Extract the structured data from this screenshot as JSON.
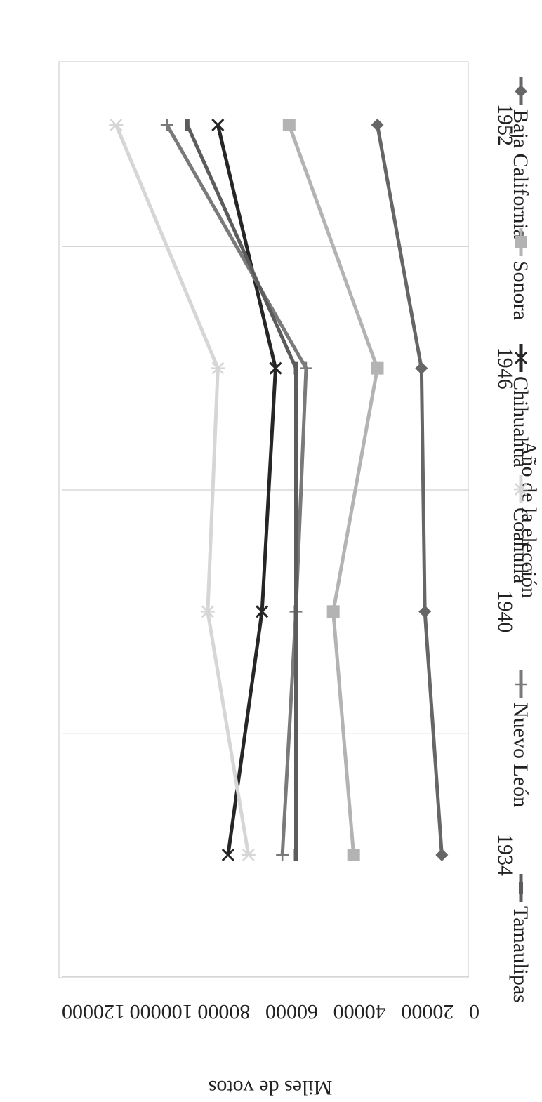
{
  "chart_data": {
    "type": "line",
    "title": "",
    "xlabel": "Año de la elección",
    "ylabel": "Miles de votos",
    "categories": [
      "1934",
      "1940",
      "1946",
      "1952"
    ],
    "ylim": [
      0,
      120000
    ],
    "yticks": [
      "0",
      "20000",
      "40000",
      "60000",
      "80000",
      "100000",
      "120000"
    ],
    "grid": true,
    "legend_position": "top",
    "rotated": "90deg clockwise",
    "series": [
      {
        "name": "Baja California",
        "values": [
          8000,
          13000,
          14000,
          27000
        ],
        "color": "#666666",
        "marker": "diamond"
      },
      {
        "name": "Sonora",
        "values": [
          34000,
          40000,
          27000,
          53000
        ],
        "color": "#b3b3b3",
        "marker": "square"
      },
      {
        "name": "Chihuahua",
        "values": [
          71000,
          61000,
          57000,
          74000
        ],
        "color": "#262626",
        "marker": "x"
      },
      {
        "name": "Coahuila",
        "values": [
          65000,
          77000,
          74000,
          104000
        ],
        "color": "#d6d6d6",
        "marker": "star"
      },
      {
        "name": "Nuevo León",
        "values": [
          55000,
          51000,
          48000,
          89000
        ],
        "color": "#7a7a7a",
        "marker": "plus"
      },
      {
        "name": "Tamaulipas",
        "values": [
          51000,
          51000,
          51000,
          83000
        ],
        "color": "#5c5c5c",
        "marker": "dash"
      }
    ]
  }
}
